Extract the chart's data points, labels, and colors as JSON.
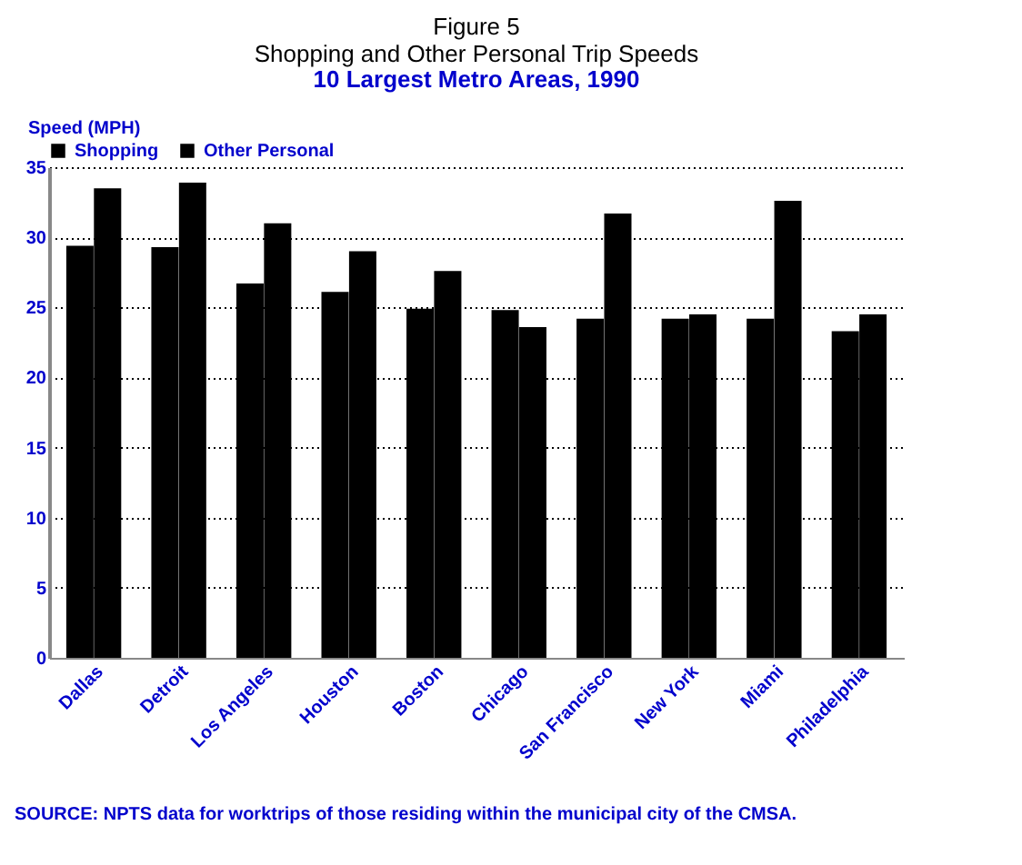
{
  "chart_data": {
    "type": "bar",
    "title": "Figure 5\nShopping and Other Personal Trip Speeds",
    "subtitle": "10 Largest Metro Areas, 1990",
    "ylabel": "Speed (MPH)",
    "categories": [
      "Dallas",
      "Detroit",
      "Los Angeles",
      "Houston",
      "Boston",
      "Chicago",
      "San Francisco",
      "New York",
      "Miami",
      "Philadelphia"
    ],
    "series": [
      {
        "name": "Shopping",
        "color": "#000000",
        "values": [
          29.4,
          29.3,
          26.7,
          26.1,
          24.9,
          24.8,
          24.2,
          24.2,
          24.2,
          23.3
        ]
      },
      {
        "name": "Other Personal",
        "color": "#000000",
        "values": [
          33.5,
          33.9,
          31,
          29,
          27.6,
          23.6,
          31.7,
          24.5,
          32.6,
          24.5
        ]
      }
    ],
    "ylim": [
      0,
      35
    ],
    "yticks": [
      0,
      5,
      10,
      15,
      20,
      25,
      30,
      35
    ],
    "grid": "y",
    "legend": "top",
    "annotations": [
      "SOURCE: NPTS data for worktrips of those residing within the municipal city of the CMSA."
    ]
  }
}
